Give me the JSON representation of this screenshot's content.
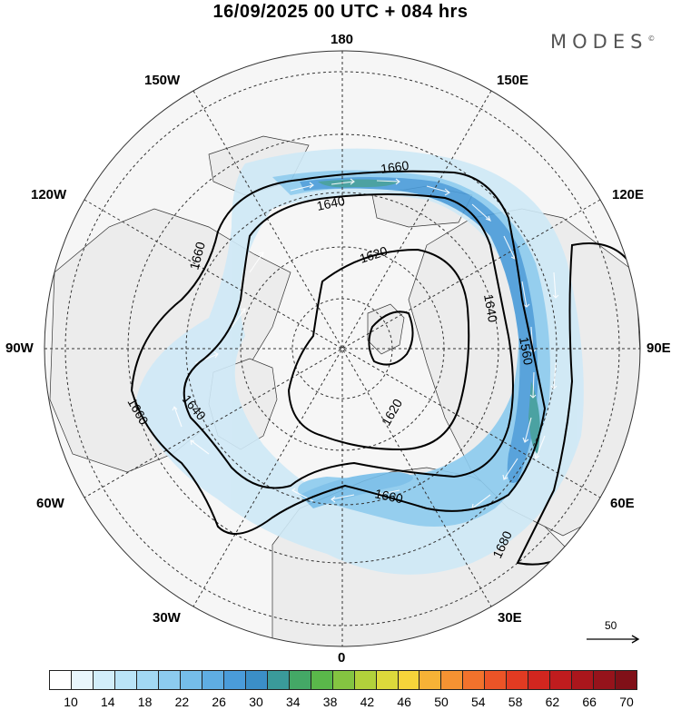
{
  "header": {
    "title": "16/09/2025  00 UTC  + 084 hrs",
    "brand": "MODES",
    "brand_mark": "©"
  },
  "map": {
    "projection": "north-polar-stereographic",
    "longitude_labels": {
      "top": "180",
      "bottom": "0",
      "left": "90W",
      "right": "90E",
      "upper_left_1": "150W",
      "upper_left_2": "120W",
      "upper_right_1": "150E",
      "upper_right_2": "120E",
      "lower_left_1": "60W",
      "lower_left_2": "30W",
      "lower_right_1": "60E",
      "lower_right_2": "30E"
    },
    "contour_labels": [
      "1660",
      "1640",
      "1620",
      "1640",
      "1660",
      "1560",
      "1620",
      "1660",
      "1640",
      "1660",
      "1680"
    ],
    "contour_color": "#000000",
    "wind_arrow_color": "#ffffff",
    "land_fill": "#ededed",
    "ocean_fill": "#f6f6f6"
  },
  "reference_vector": {
    "label": "50",
    "icon": "arrow-right-icon"
  },
  "colorbar": {
    "tick_labels": [
      "10",
      "14",
      "18",
      "22",
      "26",
      "30",
      "34",
      "38",
      "42",
      "46",
      "50",
      "54",
      "58",
      "62",
      "66",
      "70"
    ],
    "colors": [
      "#ffffff",
      "#e9f6fc",
      "#d2eefa",
      "#bae4f7",
      "#a2d8f3",
      "#8ccbef",
      "#75bde9",
      "#5fade2",
      "#4a9cda",
      "#3b8fc7",
      "#3a9a9a",
      "#44a866",
      "#5ab84a",
      "#84c441",
      "#b2d13b",
      "#ddd93b",
      "#f6d43a",
      "#f7b236",
      "#f59232",
      "#f2722c",
      "#ec5427",
      "#e23b22",
      "#d2261f",
      "#bf1c1e",
      "#aa161c",
      "#96131b",
      "#801018"
    ]
  }
}
